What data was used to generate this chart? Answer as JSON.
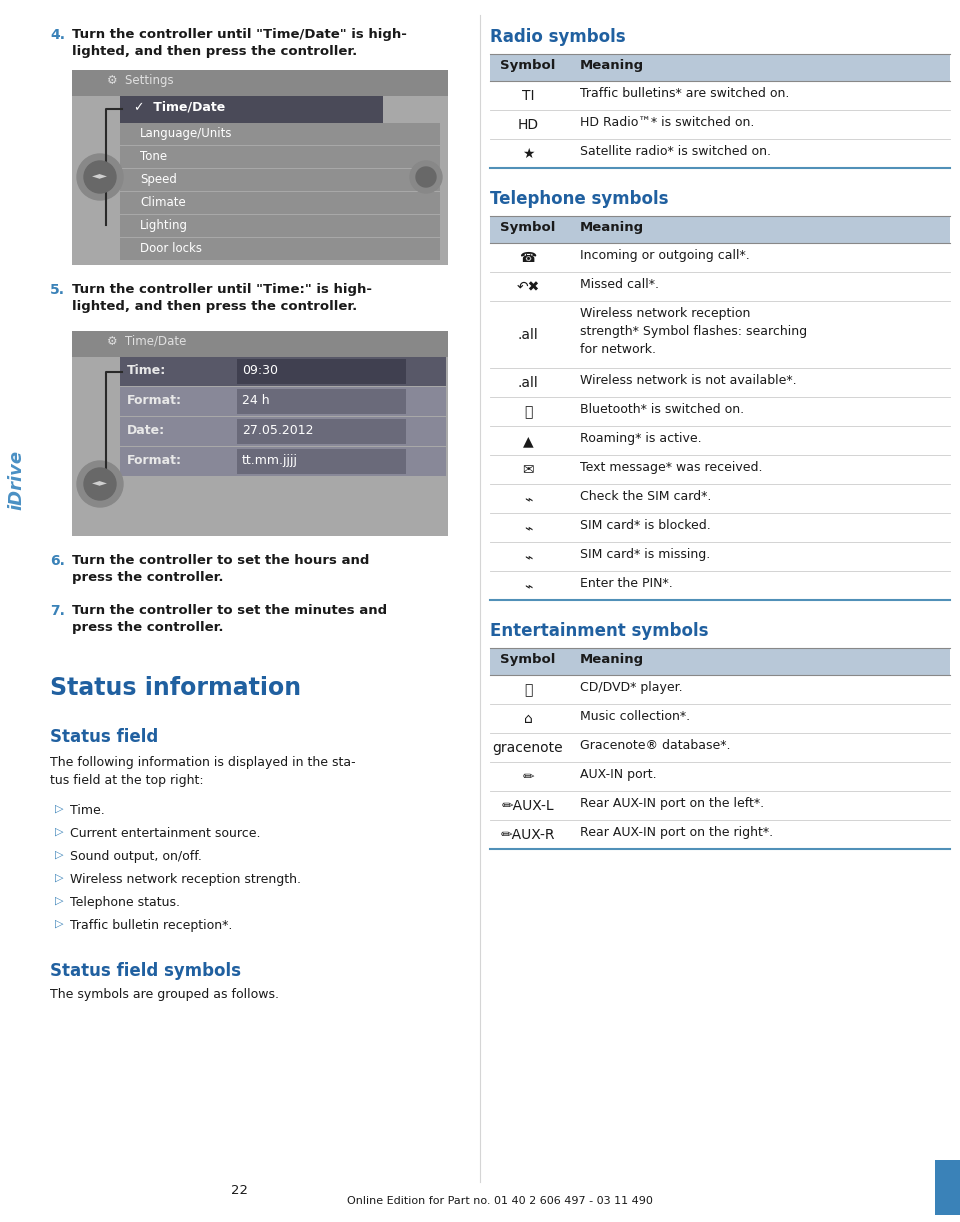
{
  "page_bg": "#ffffff",
  "blue_color": "#3a82b8",
  "dark_blue": "#2060a0",
  "table_header_bg": "#b8c8d8",
  "table_line_light": "#cccccc",
  "table_line_blue": "#5090b8",
  "body_text": "#1a1a1a",
  "idrive_color": "#4a90c4",
  "step_color": "#3a82b8",
  "img_bg": "#a8a8a8",
  "img_hdr_bg": "#888888",
  "menu_sel_bg": "#4a4a58",
  "menu_bg": "#909090",
  "menu_text": "#ffffff",
  "row_hl": "#585868",
  "row_norm": "#888898",
  "val_hl": "#404050",
  "val_norm": "#6a6a7a",
  "ctrl_outer": "#888888",
  "ctrl_inner": "#686868",
  "footer_bar": "#3a82b8",
  "page_number": "22",
  "footer_text": "Online Edition for Part no. 01 40 2 606 497 - 03 11 490",
  "step4_l1": "Turn the controller until \"Time/Date\" is high-",
  "step4_l2": "lighted, and then press the controller.",
  "step5_l1": "Turn the controller until \"Time:\" is high-",
  "step5_l2": "lighted, and then press the controller.",
  "step6_l1": "Turn the controller to set the hours and",
  "step6_l2": "press the controller.",
  "step7_l1": "Turn the controller to set the minutes and",
  "step7_l2": "press the controller.",
  "settings_menu": [
    "Language/Units",
    "Tone",
    "Speed",
    "Climate",
    "Lighting",
    "Door locks"
  ],
  "time_rows": [
    [
      "Time:",
      "09:30",
      true
    ],
    [
      "Format:",
      "24 h",
      false
    ],
    [
      "Date:",
      "27.05.2012",
      false
    ],
    [
      "Format:",
      "tt.mm.jjjj",
      false
    ]
  ],
  "radio_rows": [
    [
      "TI",
      "Traffic bulletins* are switched on."
    ],
    [
      "HD",
      "HD Radio™* is switched on."
    ],
    [
      "★",
      "Satellite radio* is switched on."
    ]
  ],
  "tel_rows": [
    [
      "☎",
      "Incoming or outgoing call*."
    ],
    [
      "↶✖",
      "Missed call*."
    ],
    [
      ".all",
      "Wireless network reception\nstrength* Symbol flashes: searching\nfor network."
    ],
    [
      ".all",
      "Wireless network is not available*."
    ],
    [
      "Ⓑ",
      "Bluetooth* is switched on."
    ],
    [
      "▲",
      "Roaming* is active."
    ],
    [
      "✉",
      "Text message* was received."
    ],
    [
      "⌁",
      "Check the SIM card*."
    ],
    [
      "⌁",
      "SIM card* is blocked."
    ],
    [
      "⌁",
      "SIM card* is missing."
    ],
    [
      "⌁",
      "Enter the PIN*."
    ]
  ],
  "ent_rows": [
    [
      "⦾",
      "CD/DVD* player."
    ],
    [
      "⌂",
      "Music collection*."
    ],
    [
      "gracenote",
      "Gracenote® database*."
    ],
    [
      "✏",
      "AUX-IN port."
    ],
    [
      "✏AUX-L",
      "Rear AUX-IN port on the left*."
    ],
    [
      "✏AUX-R",
      "Rear AUX-IN port on the right*."
    ]
  ],
  "bullets": [
    "Time.",
    "Current entertainment source.",
    "Sound output, on/off.",
    "Wireless network reception strength.",
    "Telephone status.",
    "Traffic bulletin reception*."
  ]
}
